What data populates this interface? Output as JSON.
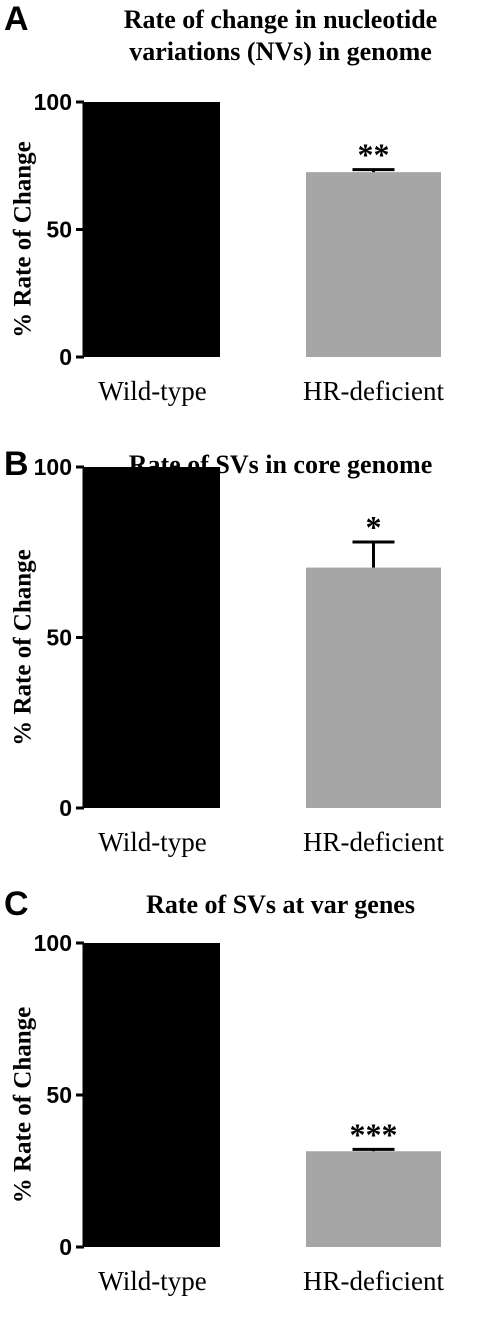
{
  "chart_data": [
    {
      "type": "bar",
      "panel": "A",
      "title": "Rate of change in nucleotide variations (NVs) in genome",
      "title_lines": [
        "Rate of change in nucleotide",
        "variations (NVs) in genome"
      ],
      "xlabel": "",
      "ylabel": "% Rate of Change",
      "categories": [
        "Wild-type",
        "HR-deficient"
      ],
      "values": [
        100,
        72.5
      ],
      "errors": [
        0,
        1
      ],
      "significance": [
        "",
        "**"
      ],
      "colors": [
        "#000000",
        "#a6a6a6"
      ],
      "ylim": [
        0,
        100
      ],
      "yticks": [
        0,
        50,
        100
      ],
      "grid": false
    },
    {
      "type": "bar",
      "panel": "B",
      "title": "Rate of SVs in core genome",
      "title_lines": [
        "Rate of SVs in core genome"
      ],
      "xlabel": "",
      "ylabel": "% Rate of Change",
      "categories": [
        "Wild-type",
        "HR-deficient"
      ],
      "values": [
        100,
        70.5
      ],
      "errors": [
        0,
        7.5
      ],
      "significance": [
        "",
        "*"
      ],
      "colors": [
        "#000000",
        "#a6a6a6"
      ],
      "ylim": [
        0,
        100
      ],
      "yticks": [
        0,
        50,
        100
      ],
      "grid": false
    },
    {
      "type": "bar",
      "panel": "C",
      "title": "Rate of SVs at var genes",
      "title_lines": [
        "Rate of SVs at var genes"
      ],
      "xlabel": "",
      "ylabel": "% Rate of Change",
      "categories": [
        "Wild-type",
        "HR-deficient"
      ],
      "values": [
        100,
        31.5
      ],
      "errors": [
        0,
        0.6
      ],
      "significance": [
        "",
        "***"
      ],
      "colors": [
        "#000000",
        "#a6a6a6"
      ],
      "ylim": [
        0,
        100
      ],
      "yticks": [
        0,
        50,
        100
      ],
      "grid": false
    }
  ]
}
